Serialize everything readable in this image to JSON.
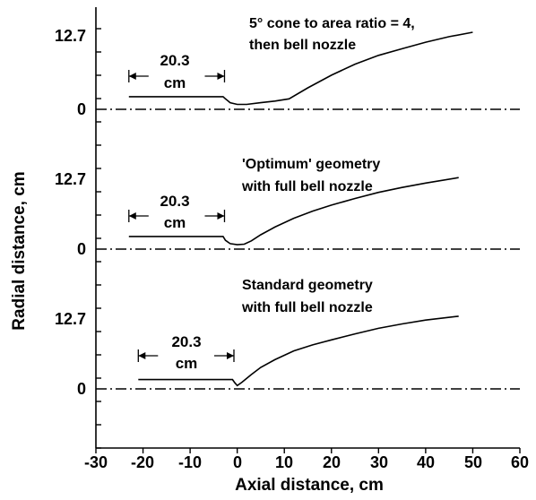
{
  "chart_data": {
    "type": "line",
    "xlabel": "Axial distance, cm",
    "ylabel": "Radial distance, cm",
    "xlim": [
      -30,
      60
    ],
    "xticks": [
      "-30",
      "-20",
      "-10",
      "0",
      "10",
      "20",
      "30",
      "40",
      "50",
      "60"
    ],
    "panels": [
      {
        "name": "top",
        "yticks": [
          "12.7",
          "0"
        ],
        "annotation": [
          "5° cone to area ratio = 4,",
          "then bell nozzle"
        ],
        "dimension": {
          "value": "20.3",
          "unit": "cm",
          "from_x": -23,
          "to_x": -2.7
        },
        "contour": {
          "x": [
            -23,
            -3,
            -2.5,
            -1.5,
            0,
            2,
            5,
            8,
            11,
            15,
            20,
            25,
            30,
            35,
            40,
            45,
            50
          ],
          "y": [
            2.3,
            2.3,
            1.9,
            1.2,
            0.9,
            0.9,
            1.2,
            1.5,
            1.9,
            3.9,
            6.2,
            8.2,
            9.8,
            11.0,
            12.2,
            13.2,
            14.0
          ]
        }
      },
      {
        "name": "middle",
        "yticks": [
          "12.7",
          "0"
        ],
        "annotation": [
          "'Optimum' geometry",
          "with full bell nozzle"
        ],
        "dimension": {
          "value": "20.3",
          "unit": "cm",
          "from_x": -23,
          "to_x": -2.7
        },
        "contour": {
          "x": [
            -23,
            -3,
            -2.5,
            -1.5,
            0,
            1.5,
            3,
            5,
            8,
            12,
            16,
            20,
            25,
            30,
            35,
            40,
            47
          ],
          "y": [
            2.3,
            2.3,
            1.6,
            1.0,
            0.8,
            0.9,
            1.5,
            2.6,
            4.0,
            5.6,
            6.9,
            8.0,
            9.2,
            10.3,
            11.2,
            12.0,
            13.0
          ]
        }
      },
      {
        "name": "bottom",
        "yticks": [
          "12.7",
          "0"
        ],
        "annotation": [
          "Standard geometry",
          "with full bell nozzle"
        ],
        "dimension": {
          "value": "20.3",
          "unit": "cm",
          "from_x": -21,
          "to_x": -0.7
        },
        "contour": {
          "x": [
            -21,
            -1,
            -0.5,
            0,
            1,
            3,
            5,
            8,
            12,
            16,
            20,
            25,
            30,
            35,
            40,
            47
          ],
          "y": [
            1.7,
            1.7,
            1.1,
            0.6,
            1.2,
            2.6,
            3.9,
            5.3,
            6.9,
            8.0,
            8.9,
            10.0,
            11.0,
            11.8,
            12.5,
            13.2
          ]
        }
      }
    ]
  }
}
